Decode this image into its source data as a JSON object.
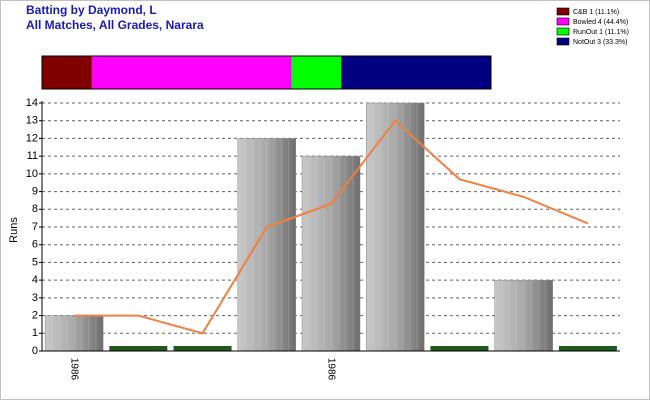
{
  "chart_data": [
    {
      "type": "stacked_bar",
      "title": "Batting by Daymond, L",
      "subtitle": "All Matches, All Grades, Narara",
      "series": [
        {
          "name": "C&B 1 (11.1%)",
          "color": "#800000",
          "values": [
            1
          ]
        },
        {
          "name": "Bowled 4 (44.4%)",
          "color": "#ff00ff",
          "values": [
            4
          ]
        },
        {
          "name": "RunOut 1 (11.1%)",
          "color": "#00ff00",
          "values": [
            1
          ]
        },
        {
          "name": "NotOut 3 (33.3%)",
          "color": "#000080",
          "values": [
            3
          ]
        }
      ],
      "legend": "top-right"
    },
    {
      "type": "bar",
      "y_label": "Runs",
      "categories": [
        "1986",
        null,
        null,
        null,
        "1986",
        null,
        null,
        null,
        null
      ],
      "values": [
        2,
        0,
        0,
        12,
        11,
        14,
        0,
        4,
        0
      ],
      "color": "#a0a0a0",
      "zero_color": "#1e5a1e",
      "line": {
        "color": "#f08040",
        "values": [
          2,
          2,
          1,
          7,
          8.3,
          13,
          9.7,
          8.7,
          7.2
        ]
      },
      "ylim": [
        0,
        14
      ],
      "yticks": [
        0,
        1,
        2,
        3,
        4,
        5,
        6,
        7,
        8,
        9,
        10,
        11,
        12,
        13,
        14
      ],
      "grid": true
    }
  ]
}
